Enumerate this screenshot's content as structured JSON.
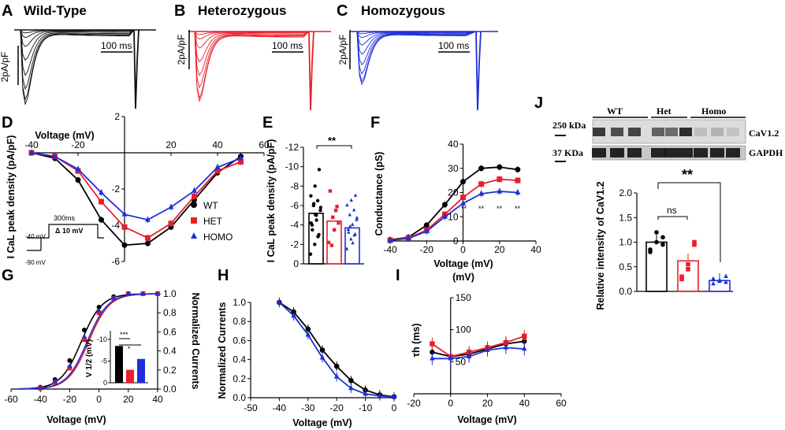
{
  "figure": {
    "panels": {
      "A": {
        "label": "A",
        "title": "Wild-Type",
        "scale_y": "2pA/pF",
        "scale_x": "100 ms",
        "color": "#111111"
      },
      "B": {
        "label": "B",
        "title": "Heterozygous",
        "scale_y": "2pA/pF",
        "scale_x": "100 ms",
        "color": "#e8202a"
      },
      "C": {
        "label": "C",
        "title": "Homozygous",
        "scale_y": "2pA/pF",
        "scale_x": "100 ms",
        "color": "#1f2fd8"
      },
      "D": {
        "label": "D",
        "protocol": {
          "duration": "300ms",
          "step": "Δ 10 mV",
          "hold1": "-40 mV",
          "hold2": "-90 mV"
        }
      },
      "E": {
        "label": "E",
        "sig": "**"
      },
      "F": {
        "label": "F",
        "sig_marks": [
          "**",
          "**",
          "**",
          "**"
        ]
      },
      "G": {
        "label": "G",
        "inset_ylabel": "V 1/2 (mV)",
        "inset_ticks": [
          "-10",
          "-5",
          "0"
        ],
        "inset_sig": [
          "***",
          "*"
        ]
      },
      "H": {
        "label": "H"
      },
      "I": {
        "label": "I"
      },
      "J": {
        "label": "J",
        "blot_groups": [
          "WT",
          "Het",
          "Homo"
        ],
        "band_labels": [
          "CaV1.2",
          "GAPDH"
        ],
        "mw_labels": [
          "250 kDa",
          "37 KDa"
        ],
        "sig_ns": "ns",
        "sig": "**"
      }
    }
  },
  "chart_data": [
    {
      "panel": "D",
      "type": "line",
      "xlabel": "Voltage (mV)",
      "ylabel": "I CaL peak density (pA/pF)",
      "xlim": [
        -40,
        60
      ],
      "ylim": [
        -6,
        2
      ],
      "xticks": [
        "-40",
        "-20",
        "20",
        "40",
        "60"
      ],
      "yticks": [
        "2",
        "-2",
        "-4",
        "-6"
      ],
      "x": [
        -40,
        -30,
        -20,
        -10,
        0,
        10,
        20,
        30,
        40,
        50
      ],
      "series": [
        {
          "name": "WT",
          "color": "#000000",
          "values": [
            0,
            -0.3,
            -1.5,
            -3.7,
            -5.1,
            -5.0,
            -4.1,
            -2.6,
            -1.1,
            -0.2
          ]
        },
        {
          "name": "HET",
          "color": "#e8202a",
          "values": [
            0,
            -0.2,
            -1.0,
            -2.7,
            -4.1,
            -4.7,
            -3.9,
            -2.4,
            -1.0,
            -0.5
          ]
        },
        {
          "name": "HOMO",
          "color": "#1f2fd8",
          "values": [
            0,
            -0.2,
            -0.9,
            -2.2,
            -3.4,
            -3.7,
            -3.0,
            -2.1,
            -0.8,
            -0.3
          ]
        }
      ]
    },
    {
      "panel": "E",
      "type": "bar",
      "ylabel": "I CaL peak density (pA/pF)",
      "ylim": [
        0,
        -12
      ],
      "yticks": [
        "-12",
        "-10",
        "-8",
        "-6",
        "-4",
        "-2",
        "0"
      ],
      "categories": [
        "WT",
        "HET",
        "HOMO"
      ],
      "values": [
        -5.2,
        -4.4,
        -3.7
      ],
      "colors": [
        "#000000",
        "#e8202a",
        "#1f2fd8"
      ]
    },
    {
      "panel": "F",
      "type": "line",
      "xlabel": "Voltage (mV)",
      "ylabel": "Conductance (pS)",
      "xlim": [
        -40,
        40
      ],
      "ylim": [
        0,
        40
      ],
      "xticks": [
        "-40",
        "-20",
        "0",
        "20",
        "40"
      ],
      "yticks": [
        "0",
        "10",
        "20",
        "30",
        "40"
      ],
      "x": [
        -40,
        -30,
        -20,
        -10,
        0,
        10,
        20,
        30
      ],
      "series": [
        {
          "name": "WT",
          "color": "#000000",
          "values": [
            0.5,
            1.5,
            6.5,
            15.0,
            24.5,
            30.0,
            30.5,
            29.5
          ]
        },
        {
          "name": "HET",
          "color": "#e8202a",
          "values": [
            0.3,
            1.2,
            4.5,
            11.0,
            18.0,
            23.5,
            25.5,
            25.0
          ]
        },
        {
          "name": "HOMO",
          "color": "#1f2fd8",
          "values": [
            0.3,
            1.0,
            4.0,
            10.0,
            15.5,
            19.5,
            20.5,
            20.0
          ]
        }
      ]
    },
    {
      "panel": "G",
      "type": "line",
      "xlabel": "Voltage (mV)",
      "ylabel": "Normalized Currents",
      "xlim": [
        -60,
        40
      ],
      "ylim": [
        0,
        1
      ],
      "xticks": [
        "-60",
        "-40",
        "-20",
        "0",
        "20",
        "40"
      ],
      "yticks": [
        "0.0",
        "0.2",
        "0.4",
        "0.6",
        "0.8",
        "1.0"
      ],
      "x": [
        -40,
        -30,
        -20,
        -10,
        0,
        10,
        20,
        30,
        40
      ],
      "series": [
        {
          "name": "WT",
          "color": "#000000",
          "values": [
            0.02,
            0.1,
            0.3,
            0.62,
            0.86,
            0.97,
            1.0,
            1.0,
            1.0
          ]
        },
        {
          "name": "HET",
          "color": "#e8202a",
          "values": [
            0.01,
            0.07,
            0.22,
            0.52,
            0.8,
            0.95,
            1.0,
            1.0,
            1.0
          ]
        },
        {
          "name": "HOMO",
          "color": "#1f2fd8",
          "values": [
            0.01,
            0.08,
            0.24,
            0.55,
            0.82,
            0.96,
            1.0,
            1.0,
            1.0
          ]
        }
      ],
      "inset": {
        "categories": [
          "WT",
          "HET",
          "HOMO"
        ],
        "values": [
          -8.5,
          -3.0,
          -5.5
        ],
        "colors": [
          "#000000",
          "#e8202a",
          "#1f2fd8"
        ]
      }
    },
    {
      "panel": "H",
      "type": "line",
      "xlabel": "Voltage (mV)",
      "ylabel": "Normalized Currents",
      "xlim": [
        -50,
        0
      ],
      "ylim": [
        0,
        1
      ],
      "xticks": [
        "-50",
        "-40",
        "-30",
        "-20",
        "-10",
        "0"
      ],
      "yticks": [
        "0.0",
        "0.2",
        "0.4",
        "0.6",
        "0.8",
        "1.0"
      ],
      "x": [
        -40,
        -35,
        -30,
        -25,
        -20,
        -15,
        -10,
        -5,
        0
      ],
      "series": [
        {
          "name": "WT",
          "color": "#000000",
          "values": [
            1.0,
            0.9,
            0.72,
            0.5,
            0.33,
            0.18,
            0.08,
            0.03,
            0.01
          ]
        },
        {
          "name": "HOMO",
          "color": "#1f2fd8",
          "values": [
            1.0,
            0.86,
            0.66,
            0.42,
            0.22,
            0.1,
            0.04,
            0.02,
            0.01
          ]
        }
      ]
    },
    {
      "panel": "I",
      "type": "line",
      "xlabel": "Voltage (mV)",
      "ylabel": "τh (ms)",
      "xlim": [
        -20,
        60
      ],
      "ylim": [
        0,
        150
      ],
      "xticks": [
        "-20",
        "0",
        "20",
        "40",
        "60"
      ],
      "yticks": [
        "50",
        "100",
        "150"
      ],
      "x": [
        -10,
        0,
        10,
        20,
        30,
        40
      ],
      "series": [
        {
          "name": "WT",
          "color": "#000000",
          "values": [
            65,
            58,
            62,
            70,
            78,
            82
          ]
        },
        {
          "name": "HET",
          "color": "#e8202a",
          "values": [
            78,
            58,
            65,
            72,
            80,
            90
          ]
        },
        {
          "name": "HOMO",
          "color": "#1f2fd8",
          "values": [
            55,
            55,
            58,
            68,
            72,
            70
          ]
        }
      ]
    },
    {
      "panel": "J",
      "type": "bar",
      "ylabel": "Relative intensity of CaV1.2",
      "ylim": [
        0,
        2
      ],
      "yticks": [
        "0.0",
        "0.5",
        "1.0",
        "1.5",
        "2.0"
      ],
      "categories": [
        "WT",
        "Het",
        "Homo"
      ],
      "values": [
        1.0,
        0.62,
        0.22
      ],
      "colors": [
        "#000000",
        "#e8202a",
        "#1f2fd8"
      ]
    }
  ]
}
